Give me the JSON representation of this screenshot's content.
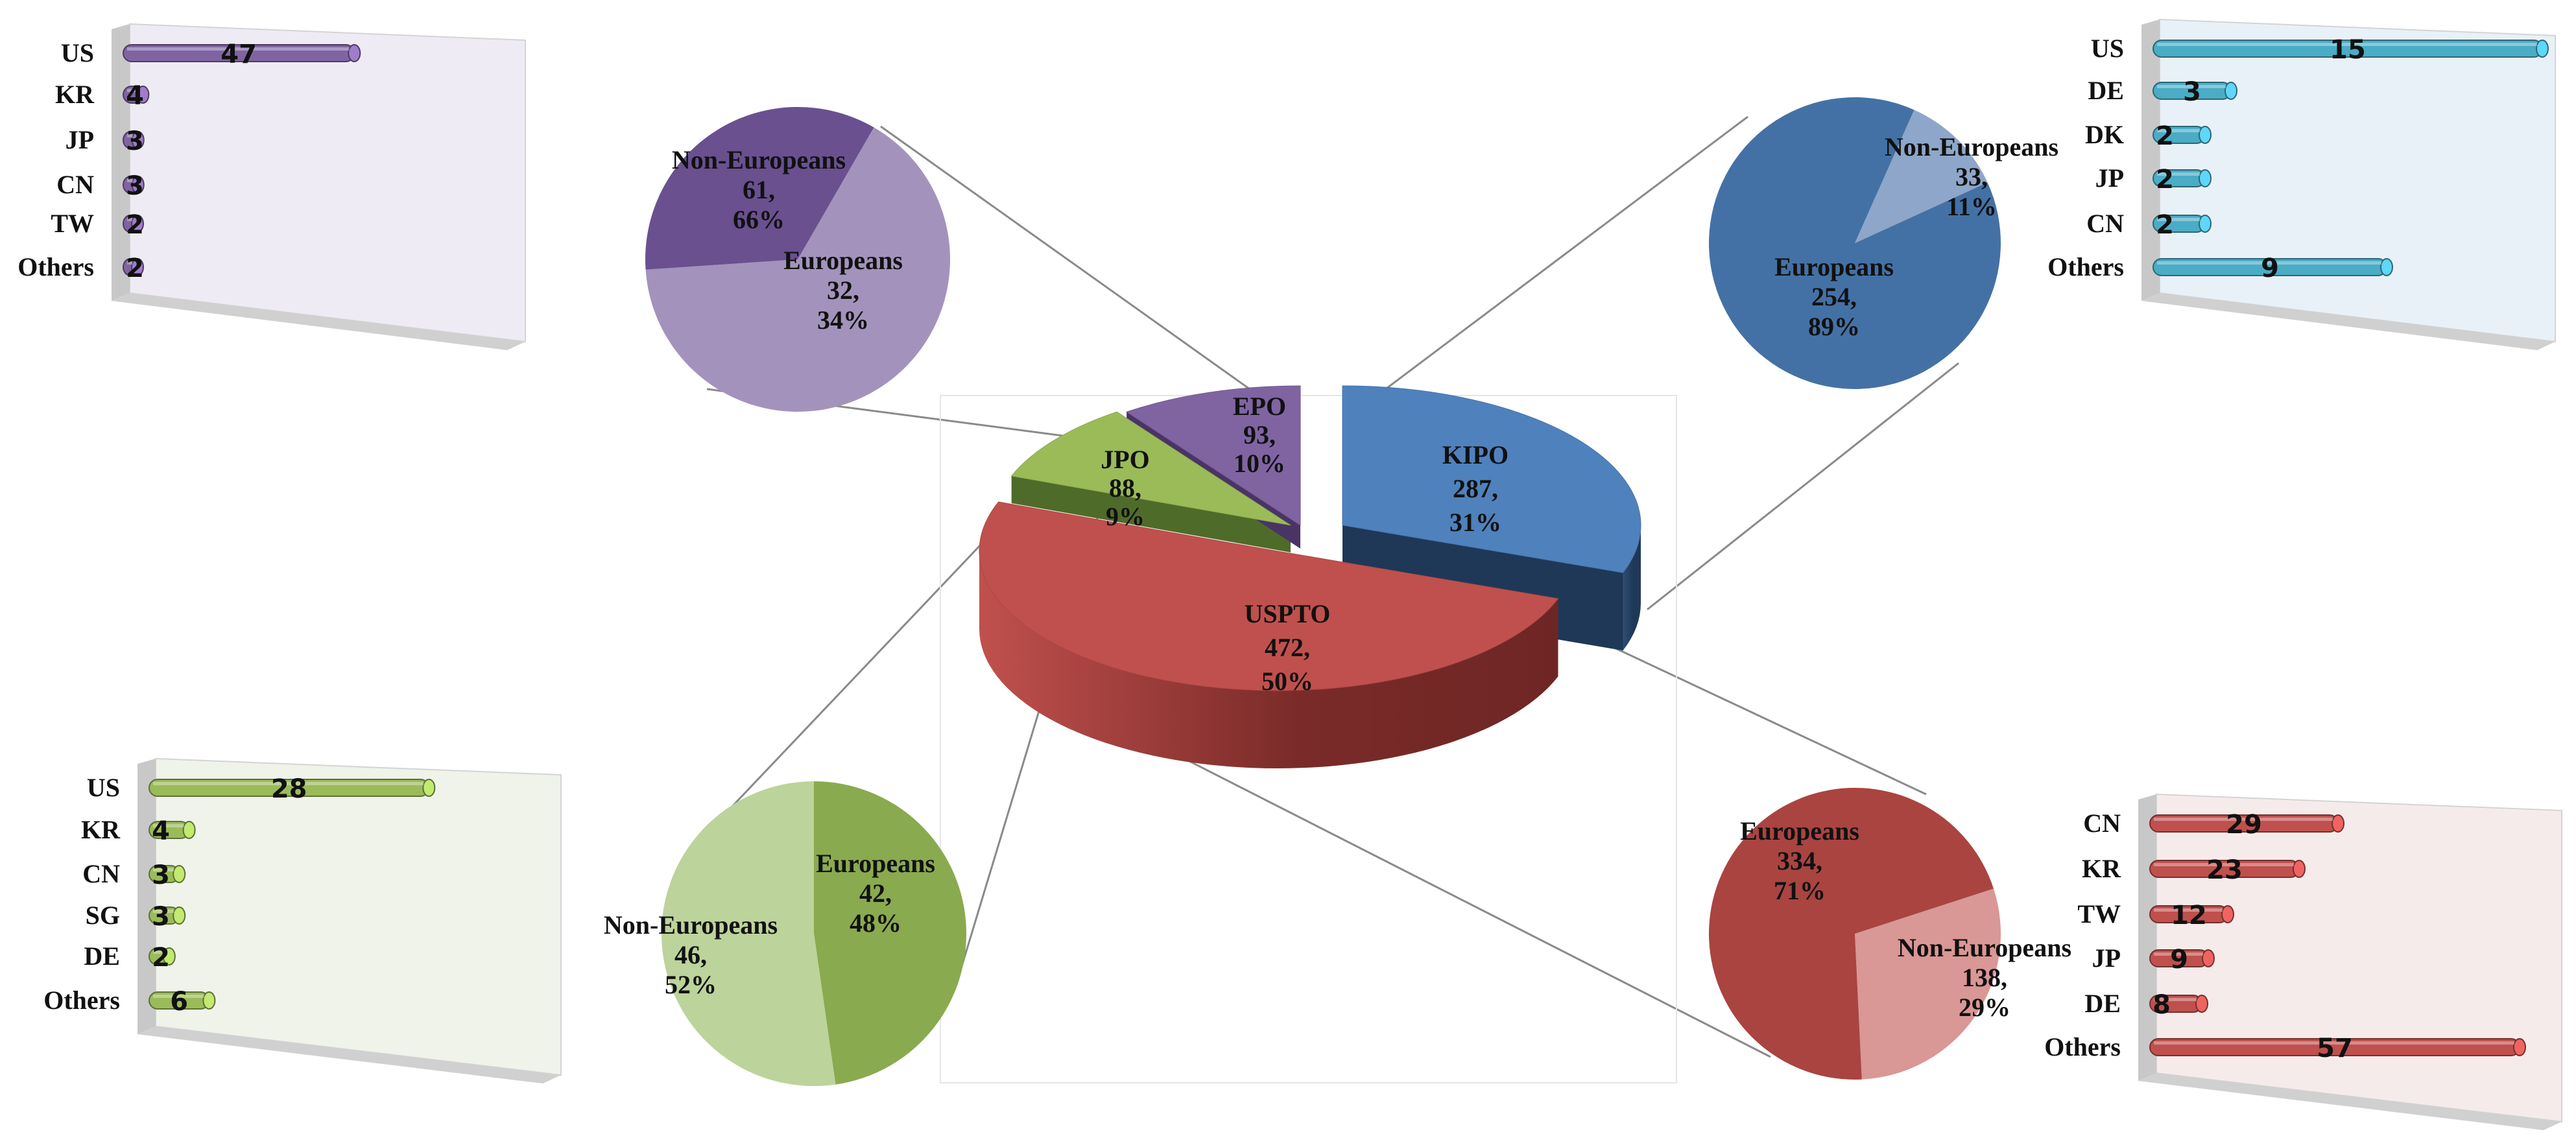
{
  "chart_data": [
    {
      "id": "main",
      "type": "pie",
      "slices": [
        {
          "label": "USPTO",
          "value": 472,
          "pct": "50%",
          "color": "#c0504d"
        },
        {
          "label": "KIPO",
          "value": 287,
          "pct": "31%",
          "color": "#4f81bd"
        },
        {
          "label": "EPO",
          "value": 93,
          "pct": "10%",
          "color": "#8064a2"
        },
        {
          "label": "JPO",
          "value": 88,
          "pct": "9%",
          "color": "#9bbb59"
        }
      ]
    },
    {
      "id": "epo_pie",
      "type": "pie",
      "slices": [
        {
          "label": "Non-Europeans",
          "value": 61,
          "pct": "66%",
          "color": "#a393bc"
        },
        {
          "label": "Europeans",
          "value": 32,
          "pct": "34%",
          "color": "#6a508f"
        }
      ]
    },
    {
      "id": "kipo_pie",
      "type": "pie",
      "slices": [
        {
          "label": "Non-Europeans",
          "value": 33,
          "pct": "11%",
          "color": "#8ea6c9"
        },
        {
          "label": "Europeans",
          "value": 254,
          "pct": "89%",
          "color": "#4471a5"
        }
      ]
    },
    {
      "id": "jpo_pie",
      "type": "pie",
      "slices": [
        {
          "label": "Europeans",
          "value": 42,
          "pct": "48%",
          "color": "#8aaa4f"
        },
        {
          "label": "Non-Europeans",
          "value": 46,
          "pct": "52%",
          "color": "#bcd39b"
        }
      ]
    },
    {
      "id": "uspto_pie",
      "type": "pie",
      "slices": [
        {
          "label": "Non-Europeans",
          "value": 138,
          "pct": "29%",
          "color": "#d99795"
        },
        {
          "label": "Europeans",
          "value": 334,
          "pct": "71%",
          "color": "#a94441"
        }
      ]
    },
    {
      "id": "epo_bar",
      "type": "bar",
      "categories": [
        "US",
        "KR",
        "JP",
        "CN",
        "TW",
        "Others"
      ],
      "values": [
        47,
        4,
        3,
        3,
        2,
        2
      ],
      "xlim": [
        0,
        62
      ],
      "color": "#8064a2"
    },
    {
      "id": "kipo_bar",
      "type": "bar",
      "categories": [
        "US",
        "DE",
        "DK",
        "JP",
        "CN",
        "Others"
      ],
      "values": [
        15,
        3,
        2,
        2,
        2,
        9
      ],
      "xlim": [
        0,
        15
      ],
      "color": "#4bacc6"
    },
    {
      "id": "jpo_bar",
      "type": "bar",
      "categories": [
        "US",
        "KR",
        "CN",
        "SG",
        "DE",
        "Others"
      ],
      "values": [
        28,
        4,
        3,
        3,
        2,
        6
      ],
      "xlim": [
        0,
        37
      ],
      "color": "#9bbb59"
    },
    {
      "id": "uspto_bar",
      "type": "bar",
      "categories": [
        "CN",
        "KR",
        "TW",
        "JP",
        "DE",
        "Others"
      ],
      "values": [
        29,
        23,
        12,
        9,
        8,
        57
      ],
      "xlim": [
        0,
        57
      ],
      "color": "#c0504d"
    }
  ]
}
